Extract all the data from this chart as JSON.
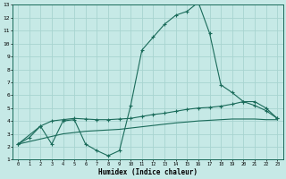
{
  "xlabel": "Humidex (Indice chaleur)",
  "bg_color": "#c6e9e6",
  "grid_color": "#a8d4d0",
  "line_color": "#1a6b5a",
  "xlim": [
    -0.5,
    23.5
  ],
  "ylim": [
    1,
    13
  ],
  "xticks": [
    0,
    1,
    2,
    3,
    4,
    5,
    6,
    7,
    8,
    9,
    10,
    11,
    12,
    13,
    14,
    15,
    16,
    17,
    18,
    19,
    20,
    21,
    22,
    23
  ],
  "yticks": [
    1,
    2,
    3,
    4,
    5,
    6,
    7,
    8,
    9,
    10,
    11,
    12,
    13
  ],
  "line1_x": [
    0,
    1,
    2,
    3,
    4,
    5,
    6,
    7,
    8,
    9,
    10,
    11,
    12,
    13,
    14,
    15,
    16,
    17,
    18,
    19,
    20,
    21,
    22,
    23
  ],
  "line1_y": [
    2.2,
    2.7,
    3.6,
    2.2,
    4.0,
    4.1,
    2.2,
    1.7,
    1.3,
    1.7,
    5.2,
    9.5,
    10.5,
    11.5,
    12.2,
    12.5,
    13.2,
    10.8,
    6.8,
    6.2,
    5.5,
    5.5,
    5.0,
    4.2
  ],
  "line2_x": [
    0,
    2,
    3,
    4,
    5,
    6,
    7,
    8,
    9,
    10,
    11,
    12,
    13,
    14,
    15,
    16,
    17,
    18,
    19,
    20,
    21,
    22,
    23
  ],
  "line2_y": [
    2.2,
    3.6,
    4.0,
    4.1,
    4.2,
    4.15,
    4.1,
    4.1,
    4.15,
    4.2,
    4.35,
    4.5,
    4.6,
    4.75,
    4.9,
    5.0,
    5.05,
    5.15,
    5.3,
    5.5,
    5.2,
    4.8,
    4.2
  ],
  "line3_x": [
    0,
    1,
    2,
    3,
    4,
    5,
    6,
    7,
    8,
    9,
    10,
    11,
    12,
    13,
    14,
    15,
    16,
    17,
    18,
    19,
    20,
    21,
    22,
    23
  ],
  "line3_y": [
    2.2,
    2.4,
    2.6,
    2.8,
    3.0,
    3.1,
    3.2,
    3.25,
    3.3,
    3.35,
    3.45,
    3.55,
    3.65,
    3.75,
    3.85,
    3.92,
    4.0,
    4.05,
    4.1,
    4.15,
    4.15,
    4.15,
    4.1,
    4.1
  ]
}
